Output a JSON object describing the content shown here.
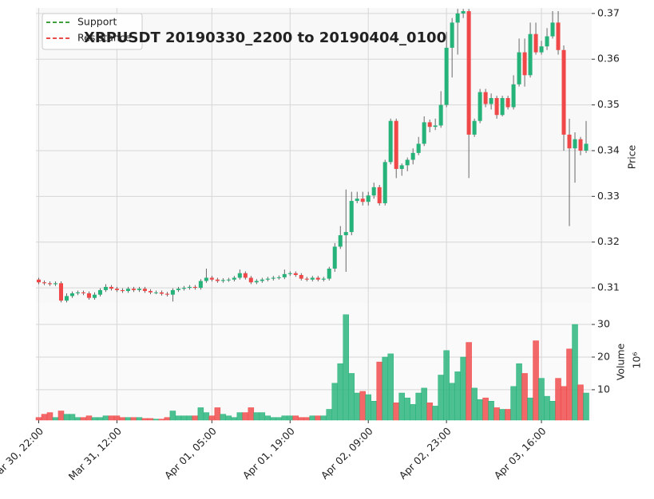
{
  "chart_data": {
    "type": "candlestick",
    "title": "XRPUSDT 20190330_2200 to 20190404_0100",
    "y_label": "Price",
    "volume_label": "Volume",
    "volume_multiplier": "10⁶",
    "legend": [
      {
        "name": "Support",
        "color": "#008000"
      },
      {
        "name": "Resistance",
        "color": "#e01010"
      }
    ],
    "up_color": "#26b37a",
    "down_color": "#f04848",
    "grid": true,
    "xlim": [
      -0.5,
      99
    ],
    "xticks": [
      {
        "value": 0,
        "label": "Mar 30, 22:00"
      },
      {
        "value": 14,
        "label": "Mar 31, 12:00"
      },
      {
        "value": 31,
        "label": "Apr 01, 05:00"
      },
      {
        "value": 45,
        "label": "Apr 01, 19:00"
      },
      {
        "value": 59,
        "label": "Apr 02, 09:00"
      },
      {
        "value": 73,
        "label": "Apr 02, 23:00"
      },
      {
        "value": 90,
        "label": "Apr 03, 16:00"
      }
    ],
    "ylim": [
      0.3067,
      0.3712
    ],
    "yticks": [
      0.31,
      0.32,
      0.33,
      0.34,
      0.35,
      0.36,
      0.37
    ],
    "volume_ylim": [
      0.7,
      36.6
    ],
    "volume_yticks": [
      10,
      20,
      30
    ],
    "open": [
      0.3118,
      0.3112,
      0.311,
      0.3108,
      0.311,
      0.3072,
      0.3082,
      0.3088,
      0.309,
      0.3088,
      0.3078,
      0.3085,
      0.3095,
      0.3102,
      0.3098,
      0.3095,
      0.3093,
      0.3098,
      0.3095,
      0.3098,
      0.3093,
      0.309,
      0.309,
      0.3087,
      0.3085,
      0.3095,
      0.3098,
      0.31,
      0.3102,
      0.31,
      0.3115,
      0.3122,
      0.3118,
      0.3115,
      0.3117,
      0.3118,
      0.3122,
      0.3132,
      0.3122,
      0.3112,
      0.3115,
      0.3118,
      0.312,
      0.3122,
      0.3123,
      0.313,
      0.3132,
      0.3128,
      0.312,
      0.3118,
      0.3122,
      0.3118,
      0.312,
      0.3142,
      0.319,
      0.3215,
      0.3222,
      0.329,
      0.3295,
      0.3288,
      0.3302,
      0.332,
      0.3285,
      0.3375,
      0.3465,
      0.336,
      0.3368,
      0.338,
      0.3395,
      0.3415,
      0.3462,
      0.3452,
      0.3455,
      0.35,
      0.3625,
      0.368,
      0.37,
      0.3705,
      0.3435,
      0.3465,
      0.3528,
      0.3502,
      0.3515,
      0.3478,
      0.3515,
      0.3495,
      0.3545,
      0.3615,
      0.3565,
      0.3655,
      0.3615,
      0.3628,
      0.365,
      0.368,
      0.362,
      0.3435,
      0.3405,
      0.3425,
      0.34
    ],
    "high": [
      0.3122,
      0.3116,
      0.3114,
      0.3114,
      0.3114,
      0.3088,
      0.3092,
      0.3094,
      0.3094,
      0.3092,
      0.309,
      0.3099,
      0.3108,
      0.3106,
      0.3102,
      0.3099,
      0.3102,
      0.3102,
      0.3102,
      0.3102,
      0.3097,
      0.3094,
      0.3094,
      0.3091,
      0.3099,
      0.3102,
      0.3104,
      0.3106,
      0.3106,
      0.3119,
      0.3142,
      0.3126,
      0.3122,
      0.3121,
      0.3122,
      0.3126,
      0.314,
      0.3136,
      0.3126,
      0.3119,
      0.3122,
      0.3124,
      0.3126,
      0.3127,
      0.314,
      0.3136,
      0.3136,
      0.3132,
      0.3124,
      0.3126,
      0.3126,
      0.3124,
      0.3146,
      0.3198,
      0.3235,
      0.3315,
      0.331,
      0.331,
      0.331,
      0.331,
      0.333,
      0.3325,
      0.338,
      0.347,
      0.347,
      0.3372,
      0.3385,
      0.3405,
      0.343,
      0.3475,
      0.3468,
      0.347,
      0.353,
      0.366,
      0.369,
      0.371,
      0.371,
      0.371,
      0.347,
      0.3535,
      0.3535,
      0.3525,
      0.352,
      0.352,
      0.352,
      0.3565,
      0.3645,
      0.3645,
      0.368,
      0.368,
      0.364,
      0.3668,
      0.3705,
      0.3705,
      0.363,
      0.347,
      0.344,
      0.343,
      0.3465
    ],
    "low": [
      0.3108,
      0.3106,
      0.3104,
      0.3104,
      0.3068,
      0.3068,
      0.3078,
      0.3084,
      0.3084,
      0.3074,
      0.3074,
      0.3081,
      0.3091,
      0.3094,
      0.3091,
      0.3089,
      0.3089,
      0.3091,
      0.3091,
      0.3089,
      0.3086,
      0.3086,
      0.3083,
      0.3081,
      0.307,
      0.3091,
      0.3094,
      0.3096,
      0.3096,
      0.3096,
      0.3111,
      0.3114,
      0.3111,
      0.3111,
      0.3113,
      0.3114,
      0.3118,
      0.3118,
      0.3108,
      0.3108,
      0.3111,
      0.3114,
      0.3116,
      0.3118,
      0.3119,
      0.3126,
      0.3124,
      0.3116,
      0.3114,
      0.3114,
      0.3114,
      0.3114,
      0.3116,
      0.3135,
      0.3185,
      0.3135,
      0.3215,
      0.3285,
      0.328,
      0.328,
      0.3295,
      0.328,
      0.328,
      0.337,
      0.334,
      0.3345,
      0.3355,
      0.337,
      0.339,
      0.341,
      0.344,
      0.3445,
      0.345,
      0.3495,
      0.356,
      0.361,
      0.369,
      0.334,
      0.343,
      0.346,
      0.3495,
      0.349,
      0.347,
      0.3475,
      0.349,
      0.349,
      0.354,
      0.354,
      0.356,
      0.361,
      0.361,
      0.362,
      0.3645,
      0.361,
      0.34,
      0.3235,
      0.333,
      0.339,
      0.3395
    ],
    "close": [
      0.3112,
      0.311,
      0.3108,
      0.311,
      0.3072,
      0.3082,
      0.3088,
      0.309,
      0.3088,
      0.3078,
      0.3085,
      0.3095,
      0.3102,
      0.3098,
      0.3095,
      0.3093,
      0.3098,
      0.3095,
      0.3098,
      0.3093,
      0.309,
      0.309,
      0.3087,
      0.3085,
      0.3095,
      0.3098,
      0.31,
      0.3102,
      0.31,
      0.3115,
      0.3122,
      0.3118,
      0.3115,
      0.3117,
      0.3118,
      0.3122,
      0.3132,
      0.3122,
      0.3112,
      0.3115,
      0.3118,
      0.312,
      0.3122,
      0.3123,
      0.313,
      0.3132,
      0.3128,
      0.312,
      0.3118,
      0.3122,
      0.3118,
      0.312,
      0.3142,
      0.319,
      0.3215,
      0.3222,
      0.329,
      0.3295,
      0.3288,
      0.3302,
      0.332,
      0.3285,
      0.3375,
      0.3465,
      0.336,
      0.3368,
      0.338,
      0.3395,
      0.3415,
      0.3462,
      0.3452,
      0.3455,
      0.35,
      0.3625,
      0.368,
      0.37,
      0.3705,
      0.3435,
      0.3465,
      0.3528,
      0.3502,
      0.3515,
      0.3478,
      0.3515,
      0.3495,
      0.3545,
      0.3615,
      0.3565,
      0.3655,
      0.3615,
      0.3628,
      0.365,
      0.368,
      0.362,
      0.3435,
      0.3405,
      0.3425,
      0.34,
      0.3415
    ],
    "volume": [
      1.5,
      2.5,
      3,
      1.5,
      3.5,
      2.5,
      2.5,
      1.5,
      1.5,
      2,
      1.5,
      1.5,
      2,
      2,
      2,
      1.5,
      1.5,
      1.5,
      1.5,
      1.2,
      1.2,
      1,
      1,
      1.5,
      3.5,
      2,
      2,
      2,
      2,
      4.5,
      3,
      2,
      4.5,
      2.5,
      2,
      1.5,
      3,
      3,
      4.5,
      3,
      3,
      2,
      1.5,
      1.5,
      2,
      2,
      2,
      1.5,
      1.5,
      2,
      2,
      2,
      4,
      12,
      18,
      33,
      15,
      9,
      9.5,
      8.5,
      6.5,
      18.5,
      20,
      21,
      6,
      9,
      7.5,
      5.5,
      9,
      10.5,
      6,
      5,
      14.5,
      22,
      12,
      15.5,
      20,
      24.5,
      10.5,
      7,
      7.5,
      6.5,
      4.5,
      4,
      4,
      11,
      18,
      15,
      7.5,
      25,
      13.5,
      8,
      6.5,
      13.5,
      11,
      22.5,
      30,
      11.5,
      9
    ]
  }
}
